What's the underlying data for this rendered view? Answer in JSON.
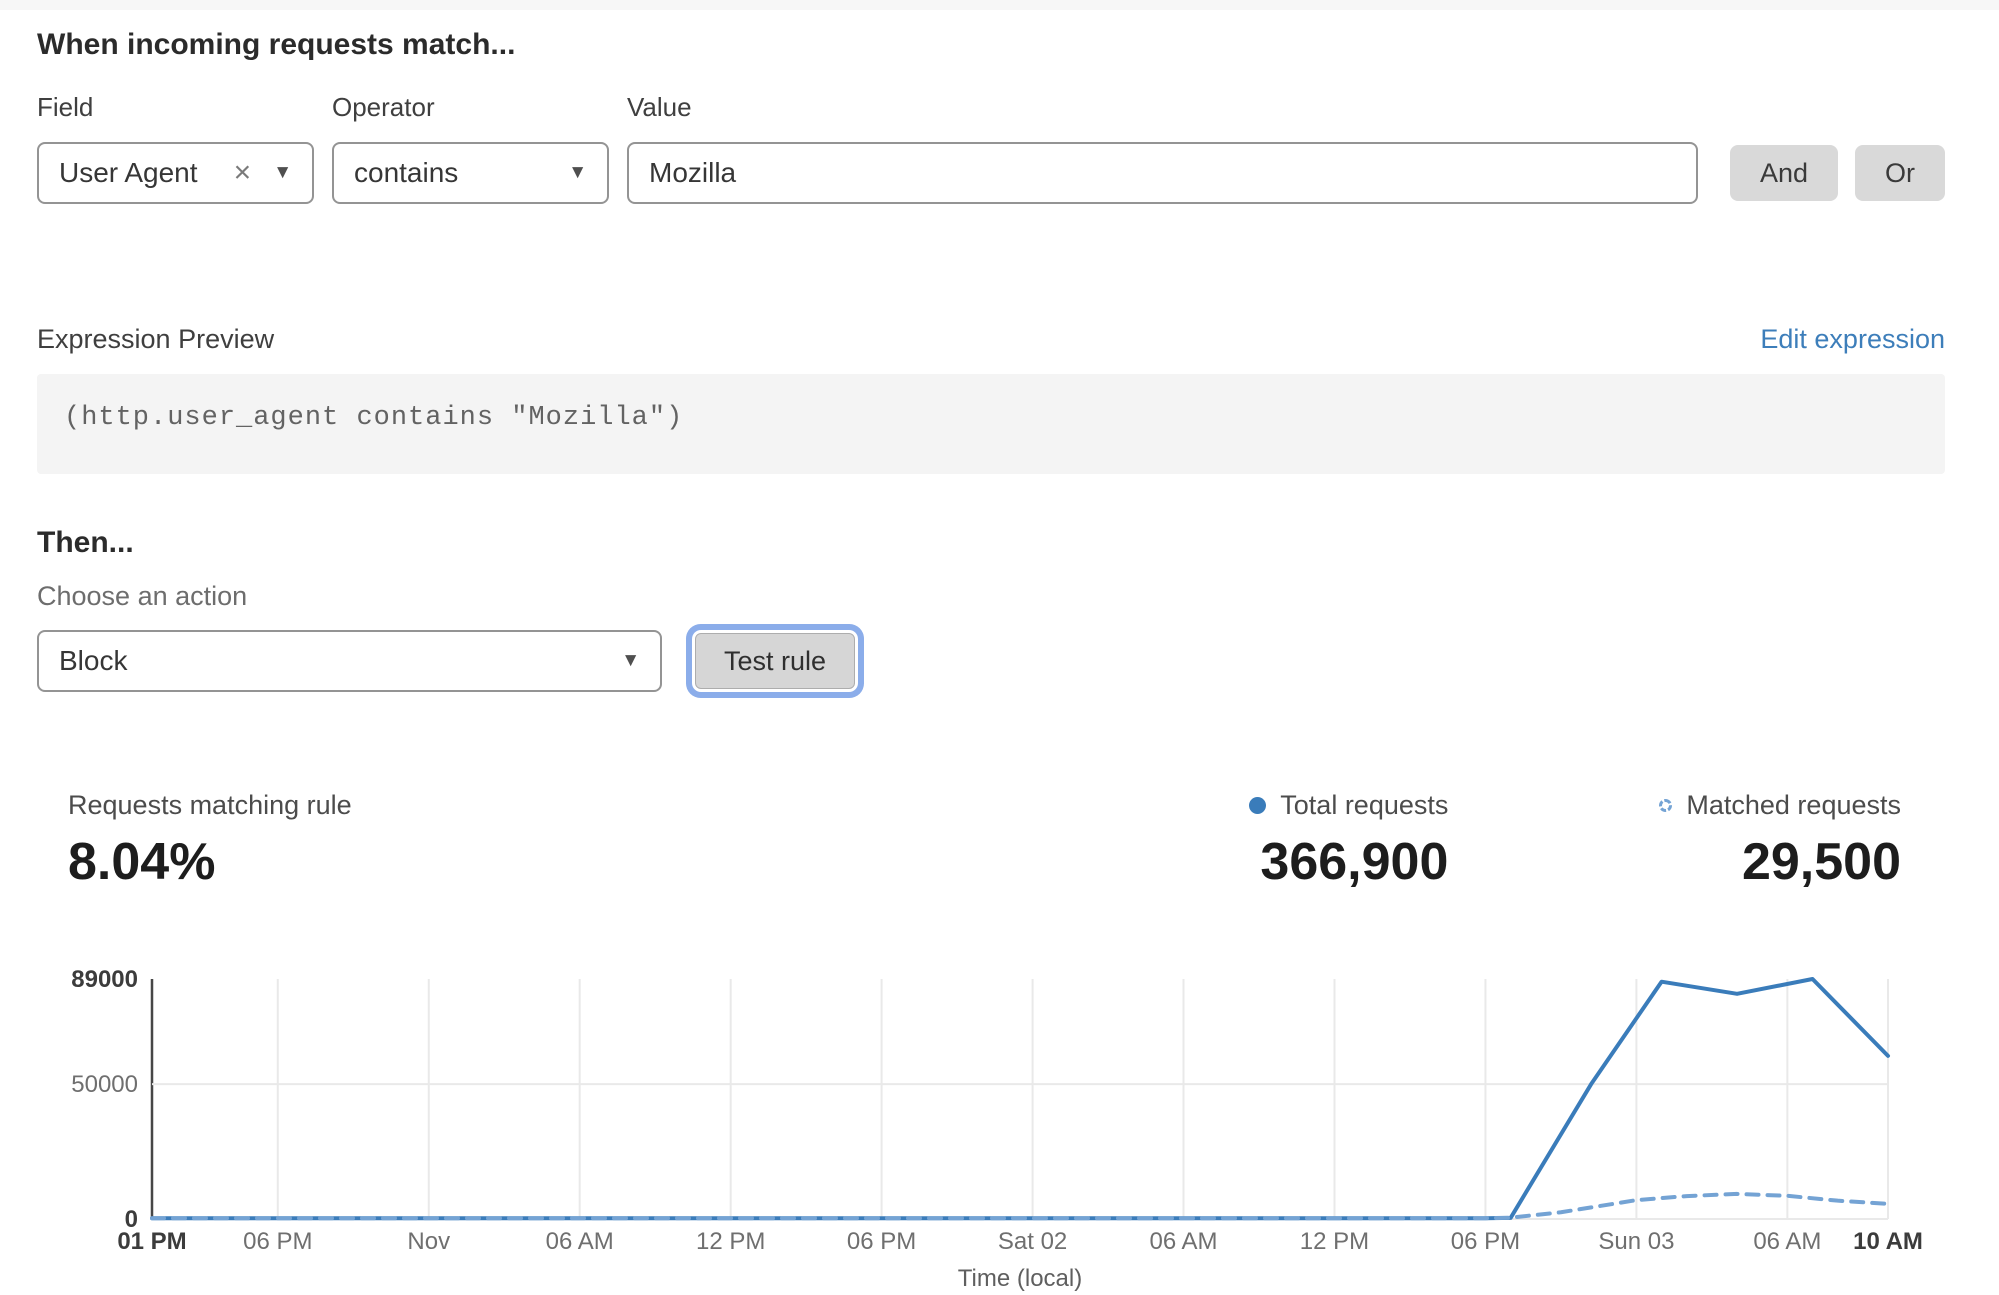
{
  "match_builder": {
    "heading": "When incoming requests match...",
    "field": {
      "label": "Field",
      "value": "User Agent"
    },
    "operator": {
      "label": "Operator",
      "value": "contains"
    },
    "value": {
      "label": "Value",
      "value": "Mozilla",
      "placeholder": ""
    },
    "and_button": "And",
    "or_button": "Or"
  },
  "expression": {
    "label": "Expression Preview",
    "edit_link": "Edit expression",
    "code": "(http.user_agent contains \"Mozilla\")"
  },
  "action_section": {
    "heading": "Then...",
    "action_label": "Choose an action",
    "action_value": "Block",
    "test_button": "Test rule"
  },
  "stats": {
    "matching": {
      "label": "Requests matching rule",
      "value": "8.04%"
    },
    "total": {
      "label": "Total requests",
      "value": "366,900"
    },
    "matched": {
      "label": "Matched requests",
      "value": "29,500"
    }
  },
  "icons": {
    "clear": "×",
    "chevron_down": "▼"
  },
  "colors": {
    "link_blue": "#3d7eba",
    "focus_ring": "#8badea",
    "button_gray": "#d9d9d9",
    "line_total": "#3a7cba",
    "line_matched": "#74a3d4"
  },
  "chart_data": {
    "type": "line",
    "title": "",
    "xlabel": "Time (local)",
    "ylabel": "",
    "ylim": [
      0,
      89000
    ],
    "grid": true,
    "legend_position": "above-right",
    "x_range_hours": [
      0,
      69
    ],
    "x_ticks": [
      {
        "h": 0,
        "label": "01 PM",
        "bold": true
      },
      {
        "h": 5,
        "label": "06 PM",
        "bold": false
      },
      {
        "h": 11,
        "label": "Nov",
        "bold": false
      },
      {
        "h": 17,
        "label": "06 AM",
        "bold": false
      },
      {
        "h": 23,
        "label": "12 PM",
        "bold": false
      },
      {
        "h": 29,
        "label": "06 PM",
        "bold": false
      },
      {
        "h": 35,
        "label": "Sat 02",
        "bold": false
      },
      {
        "h": 41,
        "label": "06 AM",
        "bold": false
      },
      {
        "h": 47,
        "label": "12 PM",
        "bold": false
      },
      {
        "h": 53,
        "label": "06 PM",
        "bold": false
      },
      {
        "h": 59,
        "label": "Sun 03",
        "bold": false
      },
      {
        "h": 65,
        "label": "06 AM",
        "bold": false
      },
      {
        "h": 69,
        "label": "10 AM",
        "bold": true
      }
    ],
    "y_ticks": [
      {
        "value": 89000,
        "label": "89000",
        "bold": true,
        "grid": false
      },
      {
        "value": 50000,
        "label": "50000",
        "bold": false,
        "grid": true
      },
      {
        "value": 0,
        "label": "0",
        "bold": true,
        "grid": true
      }
    ],
    "series": [
      {
        "name": "Total requests",
        "style": "solid",
        "color": "#3a7cba",
        "points": [
          [
            0,
            300
          ],
          [
            5,
            300
          ],
          [
            11,
            300
          ],
          [
            17,
            300
          ],
          [
            23,
            300
          ],
          [
            29,
            300
          ],
          [
            35,
            300
          ],
          [
            41,
            300
          ],
          [
            47,
            300
          ],
          [
            53,
            300
          ],
          [
            54,
            400
          ],
          [
            57.2,
            50000
          ],
          [
            60,
            88000
          ],
          [
            63,
            83500
          ],
          [
            66,
            89000
          ],
          [
            69,
            60500
          ]
        ]
      },
      {
        "name": "Matched requests",
        "style": "dashed",
        "color": "#74a3d4",
        "points": [
          [
            0,
            300
          ],
          [
            5,
            300
          ],
          [
            11,
            300
          ],
          [
            17,
            300
          ],
          [
            23,
            300
          ],
          [
            29,
            300
          ],
          [
            35,
            300
          ],
          [
            41,
            300
          ],
          [
            47,
            300
          ],
          [
            53,
            300
          ],
          [
            54,
            500
          ],
          [
            56,
            2500
          ],
          [
            59,
            7000
          ],
          [
            61,
            8500
          ],
          [
            63,
            9300
          ],
          [
            65,
            8600
          ],
          [
            67,
            6800
          ],
          [
            69,
            5600
          ]
        ]
      }
    ]
  }
}
